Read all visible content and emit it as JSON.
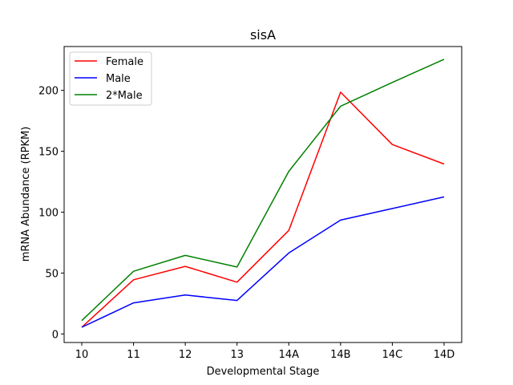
{
  "chart_data": {
    "type": "line",
    "title": "sisA",
    "xlabel": "Developmental Stage",
    "ylabel": "mRNA Abundance (RPKM)",
    "categories": [
      "10",
      "11",
      "12",
      "13",
      "14A",
      "14B",
      "14C",
      "14D"
    ],
    "ylim": [
      -7,
      236
    ],
    "yticks": [
      0,
      50,
      100,
      150,
      200
    ],
    "grid": false,
    "legend_position": "top-left",
    "series": [
      {
        "name": "Female",
        "color": "#ff0000",
        "values": [
          5.5,
          44.5,
          55.5,
          42.5,
          85,
          198.5,
          155.5,
          139.5
        ]
      },
      {
        "name": "Male",
        "color": "#0000ff",
        "values": [
          5.5,
          25.5,
          32,
          27.5,
          66.5,
          93.5,
          103,
          112.5
        ]
      },
      {
        "name": "2*Male",
        "color": "#008000",
        "values": [
          11,
          51.5,
          64.5,
          55,
          133.5,
          187,
          206.5,
          225.5
        ]
      }
    ]
  }
}
